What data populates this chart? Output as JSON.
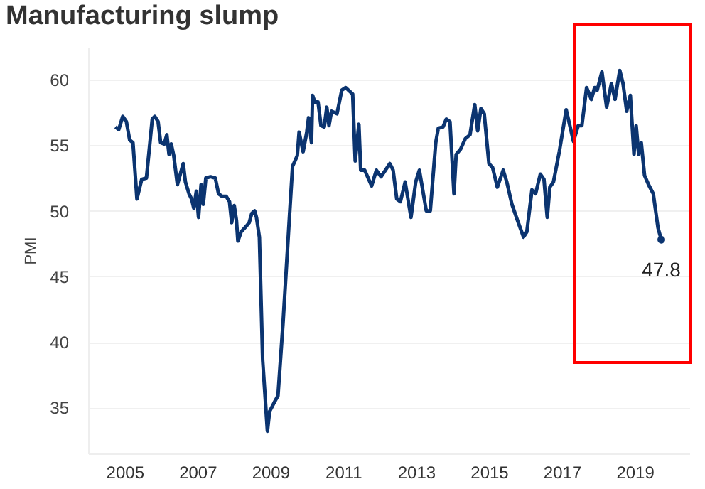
{
  "chart_data": {
    "type": "line",
    "title": "Manufacturing slump",
    "ylabel": "PMI",
    "xlim": [
      2004,
      2020.5
    ],
    "xticks": [
      2005,
      2007,
      2009,
      2011,
      2013,
      2015,
      2017,
      2019
    ],
    "ylim": [
      31.5,
      62.5
    ],
    "yticks": [
      35,
      40,
      45,
      50,
      55,
      60
    ],
    "grid": "y",
    "legend": false,
    "marker": "none",
    "line_style": "solid",
    "annotations": [
      {
        "text": "47.8",
        "x": 2019.73,
        "y": 47.8
      }
    ],
    "series": [
      {
        "color": "#0b3470",
        "x": [
          2004.75,
          2004.84,
          2004.95,
          2005.05,
          2005.14,
          2005.23,
          2005.34,
          2005.47,
          2005.6,
          2005.76,
          2005.83,
          2005.92,
          2005.99,
          2006.09,
          2006.16,
          2006.22,
          2006.28,
          2006.35,
          2006.45,
          2006.54,
          2006.61,
          2006.67,
          2006.77,
          2006.84,
          2006.9,
          2006.97,
          2007.03,
          2007.1,
          2007.16,
          2007.23,
          2007.36,
          2007.49,
          2007.58,
          2007.68,
          2007.79,
          2007.88,
          2007.94,
          2008.01,
          2008.07,
          2008.11,
          2008.2,
          2008.33,
          2008.42,
          2008.49,
          2008.57,
          2008.62,
          2008.7,
          2008.79,
          2008.92,
          2008.98,
          2009.11,
          2009.21,
          2009.35,
          2009.53,
          2009.61,
          2009.74,
          2009.79,
          2009.9,
          2010.0,
          2010.05,
          2010.13,
          2010.16,
          2010.22,
          2010.31,
          2010.39,
          2010.48,
          2010.55,
          2010.61,
          2010.68,
          2010.83,
          2010.96,
          2011.07,
          2011.26,
          2011.33,
          2011.43,
          2011.48,
          2011.59,
          2011.78,
          2011.91,
          2012.04,
          2012.28,
          2012.37,
          2012.47,
          2012.57,
          2012.7,
          2012.86,
          2012.99,
          2013.09,
          2013.28,
          2013.39,
          2013.54,
          2013.61,
          2013.74,
          2013.83,
          2013.93,
          2014.04,
          2014.1,
          2014.22,
          2014.35,
          2014.48,
          2014.61,
          2014.69,
          2014.78,
          2014.87,
          2015.0,
          2015.1,
          2015.23,
          2015.39,
          2015.49,
          2015.63,
          2015.78,
          2015.95,
          2016.04,
          2016.18,
          2016.28,
          2016.41,
          2016.51,
          2016.6,
          2016.67,
          2016.77,
          2016.93,
          2017.12,
          2017.32,
          2017.45,
          2017.55,
          2017.68,
          2017.81,
          2017.9,
          2017.97,
          2018.1,
          2018.23,
          2018.36,
          2018.46,
          2018.59,
          2018.68,
          2018.78,
          2018.88,
          2018.98,
          2019.04,
          2019.11,
          2019.18,
          2019.27,
          2019.38,
          2019.51,
          2019.64,
          2019.73
        ],
        "values": [
          56.4,
          56.2,
          57.2,
          56.8,
          55.4,
          55.2,
          50.9,
          52.4,
          52.5,
          57.0,
          57.2,
          56.8,
          55.2,
          55.1,
          55.8,
          54.3,
          55.1,
          54.2,
          52.0,
          52.9,
          53.6,
          52.2,
          51.3,
          50.9,
          50.2,
          51.5,
          49.5,
          52.0,
          50.5,
          52.5,
          52.6,
          52.5,
          51.3,
          51.1,
          51.1,
          50.7,
          49.1,
          50.4,
          49.3,
          47.7,
          48.4,
          48.8,
          49.1,
          49.8,
          50.0,
          49.5,
          48.0,
          38.6,
          33.2,
          34.7,
          35.4,
          35.9,
          41.5,
          49.8,
          53.4,
          54.2,
          56.0,
          54.5,
          56.0,
          57.1,
          55.2,
          58.8,
          58.3,
          58.3,
          56.5,
          56.4,
          57.9,
          56.5,
          57.6,
          57.4,
          59.2,
          59.4,
          58.9,
          53.8,
          56.6,
          53.1,
          53.1,
          51.9,
          53.1,
          52.6,
          53.6,
          53.1,
          50.9,
          50.7,
          52.2,
          49.5,
          52.2,
          53.1,
          50.0,
          50.0,
          55.2,
          56.3,
          56.4,
          57.0,
          56.8,
          51.3,
          54.3,
          54.7,
          55.5,
          55.8,
          58.1,
          56.1,
          57.8,
          57.4,
          53.6,
          53.3,
          51.8,
          53.1,
          52.2,
          50.5,
          49.3,
          48.0,
          48.4,
          51.6,
          51.3,
          52.8,
          52.4,
          49.5,
          51.8,
          52.2,
          54.5,
          57.7,
          55.3,
          56.5,
          56.5,
          59.4,
          58.5,
          59.4,
          59.2,
          60.6,
          57.9,
          59.7,
          58.5,
          60.7,
          59.7,
          57.6,
          58.8,
          54.3,
          56.5,
          54.3,
          55.2,
          52.7,
          52.0,
          51.3,
          48.7,
          47.8
        ]
      }
    ]
  }
}
